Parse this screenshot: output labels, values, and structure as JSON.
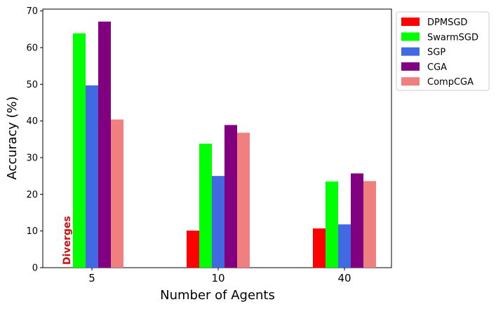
{
  "chart_data": {
    "type": "bar",
    "xlabel": "Number of Agents",
    "ylabel": "Accuracy (%)",
    "categories": [
      "5",
      "10",
      "40"
    ],
    "ylim": [
      0,
      70.5
    ],
    "yticks": [
      0,
      10,
      20,
      30,
      40,
      50,
      60,
      70
    ],
    "grid": false,
    "legend_position": "outside-top-right",
    "series": [
      {
        "name": "DPMSGD",
        "color": "#ff0000",
        "values": [
          null,
          10.1,
          10.7
        ]
      },
      {
        "name": "SwarmSGD",
        "color": "#00ff00",
        "values": [
          63.9,
          33.8,
          23.5
        ]
      },
      {
        "name": "SGP",
        "color": "#4169e1",
        "values": [
          49.7,
          25.0,
          11.8
        ]
      },
      {
        "name": "CGA",
        "color": "#800080",
        "values": [
          67.1,
          38.9,
          25.7
        ]
      },
      {
        "name": "CompCGA",
        "color": "#f08080",
        "values": [
          40.4,
          36.8,
          23.6
        ]
      }
    ],
    "annotations": [
      {
        "text": "Diverges",
        "category": "5",
        "series": "DPMSGD",
        "color": "#cc1111"
      }
    ]
  }
}
